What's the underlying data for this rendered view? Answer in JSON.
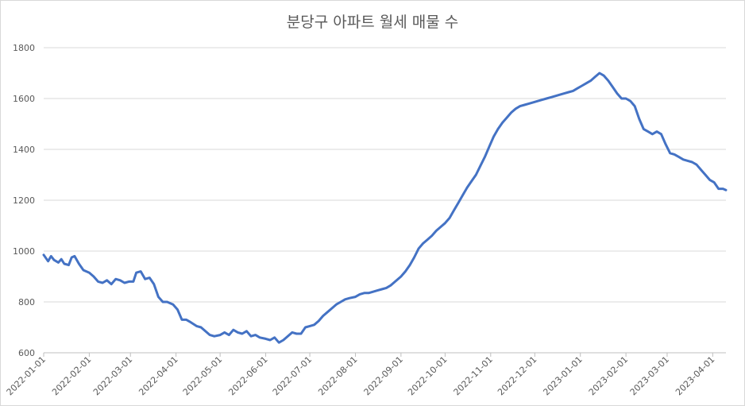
{
  "chart_data": {
    "type": "line",
    "title": "분당구 아파트 월세 매물 수",
    "xlabel": "",
    "ylabel": "",
    "ylim": [
      600,
      1800
    ],
    "y_ticks": [
      600,
      800,
      1000,
      1200,
      1400,
      1600,
      1800
    ],
    "x_ticks": [
      "2022-01-01",
      "2022-02-01",
      "2022-03-01",
      "2022-04-01",
      "2022-05-01",
      "2022-06-01",
      "2022-07-01",
      "2022-08-01",
      "2022-09-01",
      "2022-10-01",
      "2022-11-01",
      "2022-12-01",
      "2023-01-01",
      "2023-02-01",
      "2023-03-01",
      "2023-04-01"
    ],
    "x_range": [
      "2022-01-01",
      "2023-04-10"
    ],
    "grid": "horizontal",
    "legend": "none",
    "series_color": "#4472c4",
    "series": [
      {
        "points": [
          [
            "2022-01-01",
            985
          ],
          [
            "2022-01-04",
            960
          ],
          [
            "2022-01-06",
            980
          ],
          [
            "2022-01-08",
            965
          ],
          [
            "2022-01-11",
            955
          ],
          [
            "2022-01-13",
            968
          ],
          [
            "2022-01-15",
            950
          ],
          [
            "2022-01-18",
            945
          ],
          [
            "2022-01-20",
            975
          ],
          [
            "2022-01-22",
            980
          ],
          [
            "2022-01-25",
            950
          ],
          [
            "2022-01-28",
            925
          ],
          [
            "2022-02-01",
            915
          ],
          [
            "2022-02-04",
            900
          ],
          [
            "2022-02-07",
            880
          ],
          [
            "2022-02-10",
            875
          ],
          [
            "2022-02-13",
            885
          ],
          [
            "2022-02-16",
            870
          ],
          [
            "2022-02-19",
            890
          ],
          [
            "2022-02-22",
            885
          ],
          [
            "2022-02-25",
            875
          ],
          [
            "2022-02-28",
            880
          ],
          [
            "2022-03-03",
            880
          ],
          [
            "2022-03-05",
            915
          ],
          [
            "2022-03-08",
            920
          ],
          [
            "2022-03-11",
            890
          ],
          [
            "2022-03-14",
            895
          ],
          [
            "2022-03-17",
            870
          ],
          [
            "2022-03-20",
            820
          ],
          [
            "2022-03-23",
            800
          ],
          [
            "2022-03-26",
            800
          ],
          [
            "2022-03-30",
            790
          ],
          [
            "2022-04-02",
            770
          ],
          [
            "2022-04-05",
            730
          ],
          [
            "2022-04-08",
            730
          ],
          [
            "2022-04-11",
            720
          ],
          [
            "2022-04-15",
            705
          ],
          [
            "2022-04-18",
            700
          ],
          [
            "2022-04-21",
            685
          ],
          [
            "2022-04-24",
            670
          ],
          [
            "2022-04-27",
            665
          ],
          [
            "2022-05-01",
            670
          ],
          [
            "2022-05-04",
            680
          ],
          [
            "2022-05-07",
            670
          ],
          [
            "2022-05-10",
            690
          ],
          [
            "2022-05-13",
            680
          ],
          [
            "2022-05-16",
            675
          ],
          [
            "2022-05-19",
            685
          ],
          [
            "2022-05-22",
            665
          ],
          [
            "2022-05-25",
            670
          ],
          [
            "2022-05-28",
            660
          ],
          [
            "2022-06-01",
            655
          ],
          [
            "2022-06-04",
            650
          ],
          [
            "2022-06-07",
            660
          ],
          [
            "2022-06-10",
            640
          ],
          [
            "2022-06-13",
            650
          ],
          [
            "2022-06-16",
            665
          ],
          [
            "2022-06-19",
            680
          ],
          [
            "2022-06-22",
            675
          ],
          [
            "2022-06-25",
            675
          ],
          [
            "2022-06-28",
            700
          ],
          [
            "2022-07-01",
            705
          ],
          [
            "2022-07-04",
            710
          ],
          [
            "2022-07-07",
            725
          ],
          [
            "2022-07-10",
            745
          ],
          [
            "2022-07-13",
            760
          ],
          [
            "2022-07-16",
            775
          ],
          [
            "2022-07-19",
            790
          ],
          [
            "2022-07-22",
            800
          ],
          [
            "2022-07-25",
            810
          ],
          [
            "2022-07-28",
            815
          ],
          [
            "2022-08-01",
            820
          ],
          [
            "2022-08-04",
            830
          ],
          [
            "2022-08-07",
            835
          ],
          [
            "2022-08-10",
            835
          ],
          [
            "2022-08-13",
            840
          ],
          [
            "2022-08-16",
            845
          ],
          [
            "2022-08-19",
            850
          ],
          [
            "2022-08-22",
            855
          ],
          [
            "2022-08-25",
            865
          ],
          [
            "2022-08-28",
            880
          ],
          [
            "2022-09-01",
            900
          ],
          [
            "2022-09-04",
            920
          ],
          [
            "2022-09-07",
            945
          ],
          [
            "2022-09-10",
            975
          ],
          [
            "2022-09-13",
            1010
          ],
          [
            "2022-09-16",
            1030
          ],
          [
            "2022-09-19",
            1045
          ],
          [
            "2022-09-22",
            1060
          ],
          [
            "2022-09-25",
            1080
          ],
          [
            "2022-09-28",
            1095
          ],
          [
            "2022-10-01",
            1110
          ],
          [
            "2022-10-04",
            1130
          ],
          [
            "2022-10-07",
            1160
          ],
          [
            "2022-10-10",
            1190
          ],
          [
            "2022-10-13",
            1220
          ],
          [
            "2022-10-16",
            1250
          ],
          [
            "2022-10-19",
            1275
          ],
          [
            "2022-10-22",
            1300
          ],
          [
            "2022-10-25",
            1335
          ],
          [
            "2022-10-28",
            1370
          ],
          [
            "2022-10-31",
            1410
          ],
          [
            "2022-11-03",
            1450
          ],
          [
            "2022-11-06",
            1480
          ],
          [
            "2022-11-09",
            1505
          ],
          [
            "2022-11-12",
            1525
          ],
          [
            "2022-11-15",
            1545
          ],
          [
            "2022-11-18",
            1560
          ],
          [
            "2022-11-21",
            1570
          ],
          [
            "2022-11-24",
            1575
          ],
          [
            "2022-11-27",
            1580
          ],
          [
            "2022-11-30",
            1585
          ],
          [
            "2022-12-03",
            1590
          ],
          [
            "2022-12-06",
            1595
          ],
          [
            "2022-12-09",
            1600
          ],
          [
            "2022-12-12",
            1605
          ],
          [
            "2022-12-15",
            1610
          ],
          [
            "2022-12-18",
            1615
          ],
          [
            "2022-12-21",
            1620
          ],
          [
            "2022-12-24",
            1625
          ],
          [
            "2022-12-27",
            1630
          ],
          [
            "2022-12-30",
            1640
          ],
          [
            "2023-01-02",
            1650
          ],
          [
            "2023-01-05",
            1660
          ],
          [
            "2023-01-08",
            1670
          ],
          [
            "2023-01-11",
            1685
          ],
          [
            "2023-01-14",
            1700
          ],
          [
            "2023-01-17",
            1690
          ],
          [
            "2023-01-20",
            1670
          ],
          [
            "2023-01-23",
            1645
          ],
          [
            "2023-01-26",
            1620
          ],
          [
            "2023-01-29",
            1600
          ],
          [
            "2023-02-01",
            1600
          ],
          [
            "2023-02-04",
            1590
          ],
          [
            "2023-02-07",
            1570
          ],
          [
            "2023-02-10",
            1520
          ],
          [
            "2023-02-13",
            1480
          ],
          [
            "2023-02-16",
            1470
          ],
          [
            "2023-02-19",
            1460
          ],
          [
            "2023-02-22",
            1470
          ],
          [
            "2023-02-25",
            1460
          ],
          [
            "2023-02-28",
            1420
          ],
          [
            "2023-03-03",
            1385
          ],
          [
            "2023-03-06",
            1380
          ],
          [
            "2023-03-09",
            1370
          ],
          [
            "2023-03-12",
            1360
          ],
          [
            "2023-03-15",
            1355
          ],
          [
            "2023-03-18",
            1350
          ],
          [
            "2023-03-21",
            1340
          ],
          [
            "2023-03-24",
            1320
          ],
          [
            "2023-03-27",
            1300
          ],
          [
            "2023-03-30",
            1280
          ],
          [
            "2023-04-02",
            1270
          ],
          [
            "2023-04-05",
            1245
          ],
          [
            "2023-04-08",
            1245
          ],
          [
            "2023-04-10",
            1240
          ]
        ]
      }
    ]
  }
}
